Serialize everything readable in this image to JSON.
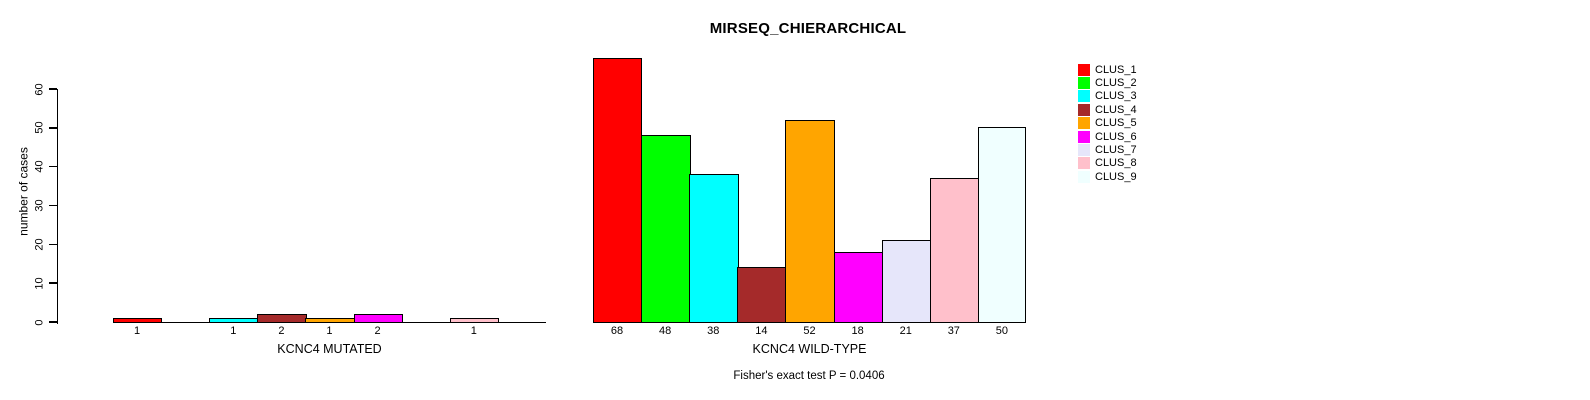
{
  "chart_data": {
    "type": "bar",
    "title": "MIRSEQ_CHIERARCHICAL",
    "ylabel": "number of cases",
    "ylim": [
      0,
      60
    ],
    "yticks": [
      0,
      10,
      20,
      30,
      40,
      50,
      60
    ],
    "grid": false,
    "legend_position": "right",
    "categories": [
      "CLUS_1",
      "CLUS_2",
      "CLUS_3",
      "CLUS_4",
      "CLUS_5",
      "CLUS_6",
      "CLUS_7",
      "CLUS_8",
      "CLUS_9"
    ],
    "colors": [
      "#FF0000",
      "#00FF00",
      "#00FFFF",
      "#A52A2A",
      "#FFA500",
      "#FF00FF",
      "#E6E6FA",
      "#FFC0CB",
      "#F0FFFF"
    ],
    "panels": [
      {
        "xlabel": "KCNC4 MUTATED",
        "values": [
          1,
          0,
          1,
          2,
          1,
          2,
          0,
          1,
          0
        ]
      },
      {
        "xlabel": "KCNC4 WILD-TYPE",
        "values": [
          68,
          48,
          38,
          14,
          52,
          18,
          21,
          37,
          50
        ]
      }
    ],
    "annotation": "Fisher's exact test P = 0.0406"
  }
}
